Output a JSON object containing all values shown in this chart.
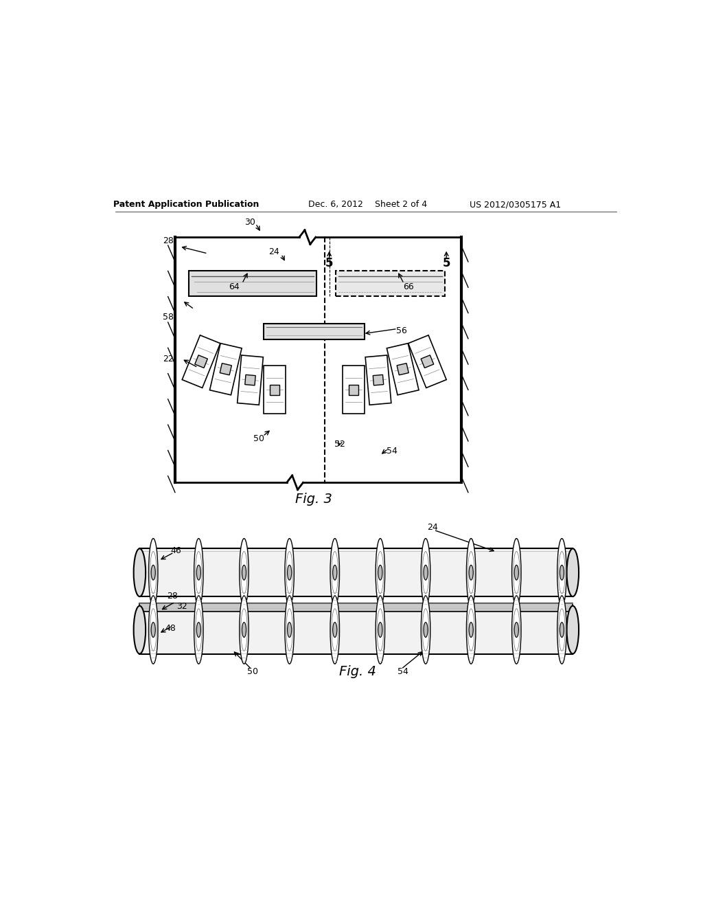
{
  "bg_color": "#ffffff",
  "header_text": "Patent Application Publication",
  "header_date": "Dec. 6, 2012",
  "header_sheet": "Sheet 2 of 4",
  "header_patent": "US 2012/0305175 A1",
  "fig3_label": "Fig. 3",
  "fig4_label": "Fig. 4"
}
